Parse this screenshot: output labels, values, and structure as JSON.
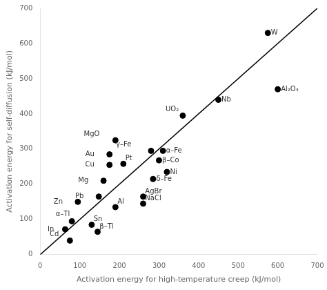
{
  "chart_data": {
    "type": "scatter",
    "xlabel": "Activation energy for high-temperature creep (kJ/mol)",
    "ylabel": "Activation energy for self-diffusion (kJ/mol)",
    "xlim": [
      0,
      700
    ],
    "ylim": [
      0,
      700
    ],
    "xticks": [
      0,
      100,
      200,
      300,
      400,
      500,
      600,
      700
    ],
    "yticks": [
      0,
      100,
      200,
      300,
      400,
      500,
      600,
      700
    ],
    "grid": false,
    "series": [
      {
        "type": "line",
        "color": "black",
        "x": [
          0,
          700
        ],
        "values": [
          0,
          700
        ]
      },
      {
        "type": "scatter",
        "color": "black",
        "marker": "circle",
        "x": [
          575,
          600,
          450,
          360,
          310,
          300,
          280,
          285,
          320,
          190,
          210,
          175,
          175,
          160,
          190,
          148,
          95,
          80,
          63,
          75,
          130,
          145,
          260,
          260
        ],
        "values": [
          630,
          470,
          440,
          395,
          295,
          268,
          295,
          215,
          235,
          325,
          258,
          285,
          255,
          210,
          135,
          165,
          150,
          95,
          72,
          40,
          85,
          65,
          165,
          145
        ],
        "annotations": [
          "W",
          "Al₂O₃",
          "Nb",
          "UO₂",
          "α–Fe",
          "β–Co",
          "γ–Fe",
          "δ–Fe",
          "Ni",
          "MgO",
          "Pt",
          "Au",
          "Cu",
          "Mg",
          "Al",
          "Pb",
          "Zn",
          "α–Tl",
          "In",
          "Cd",
          "Sn",
          "β–Tl",
          "AgBr",
          "NaCl"
        ]
      }
    ]
  }
}
